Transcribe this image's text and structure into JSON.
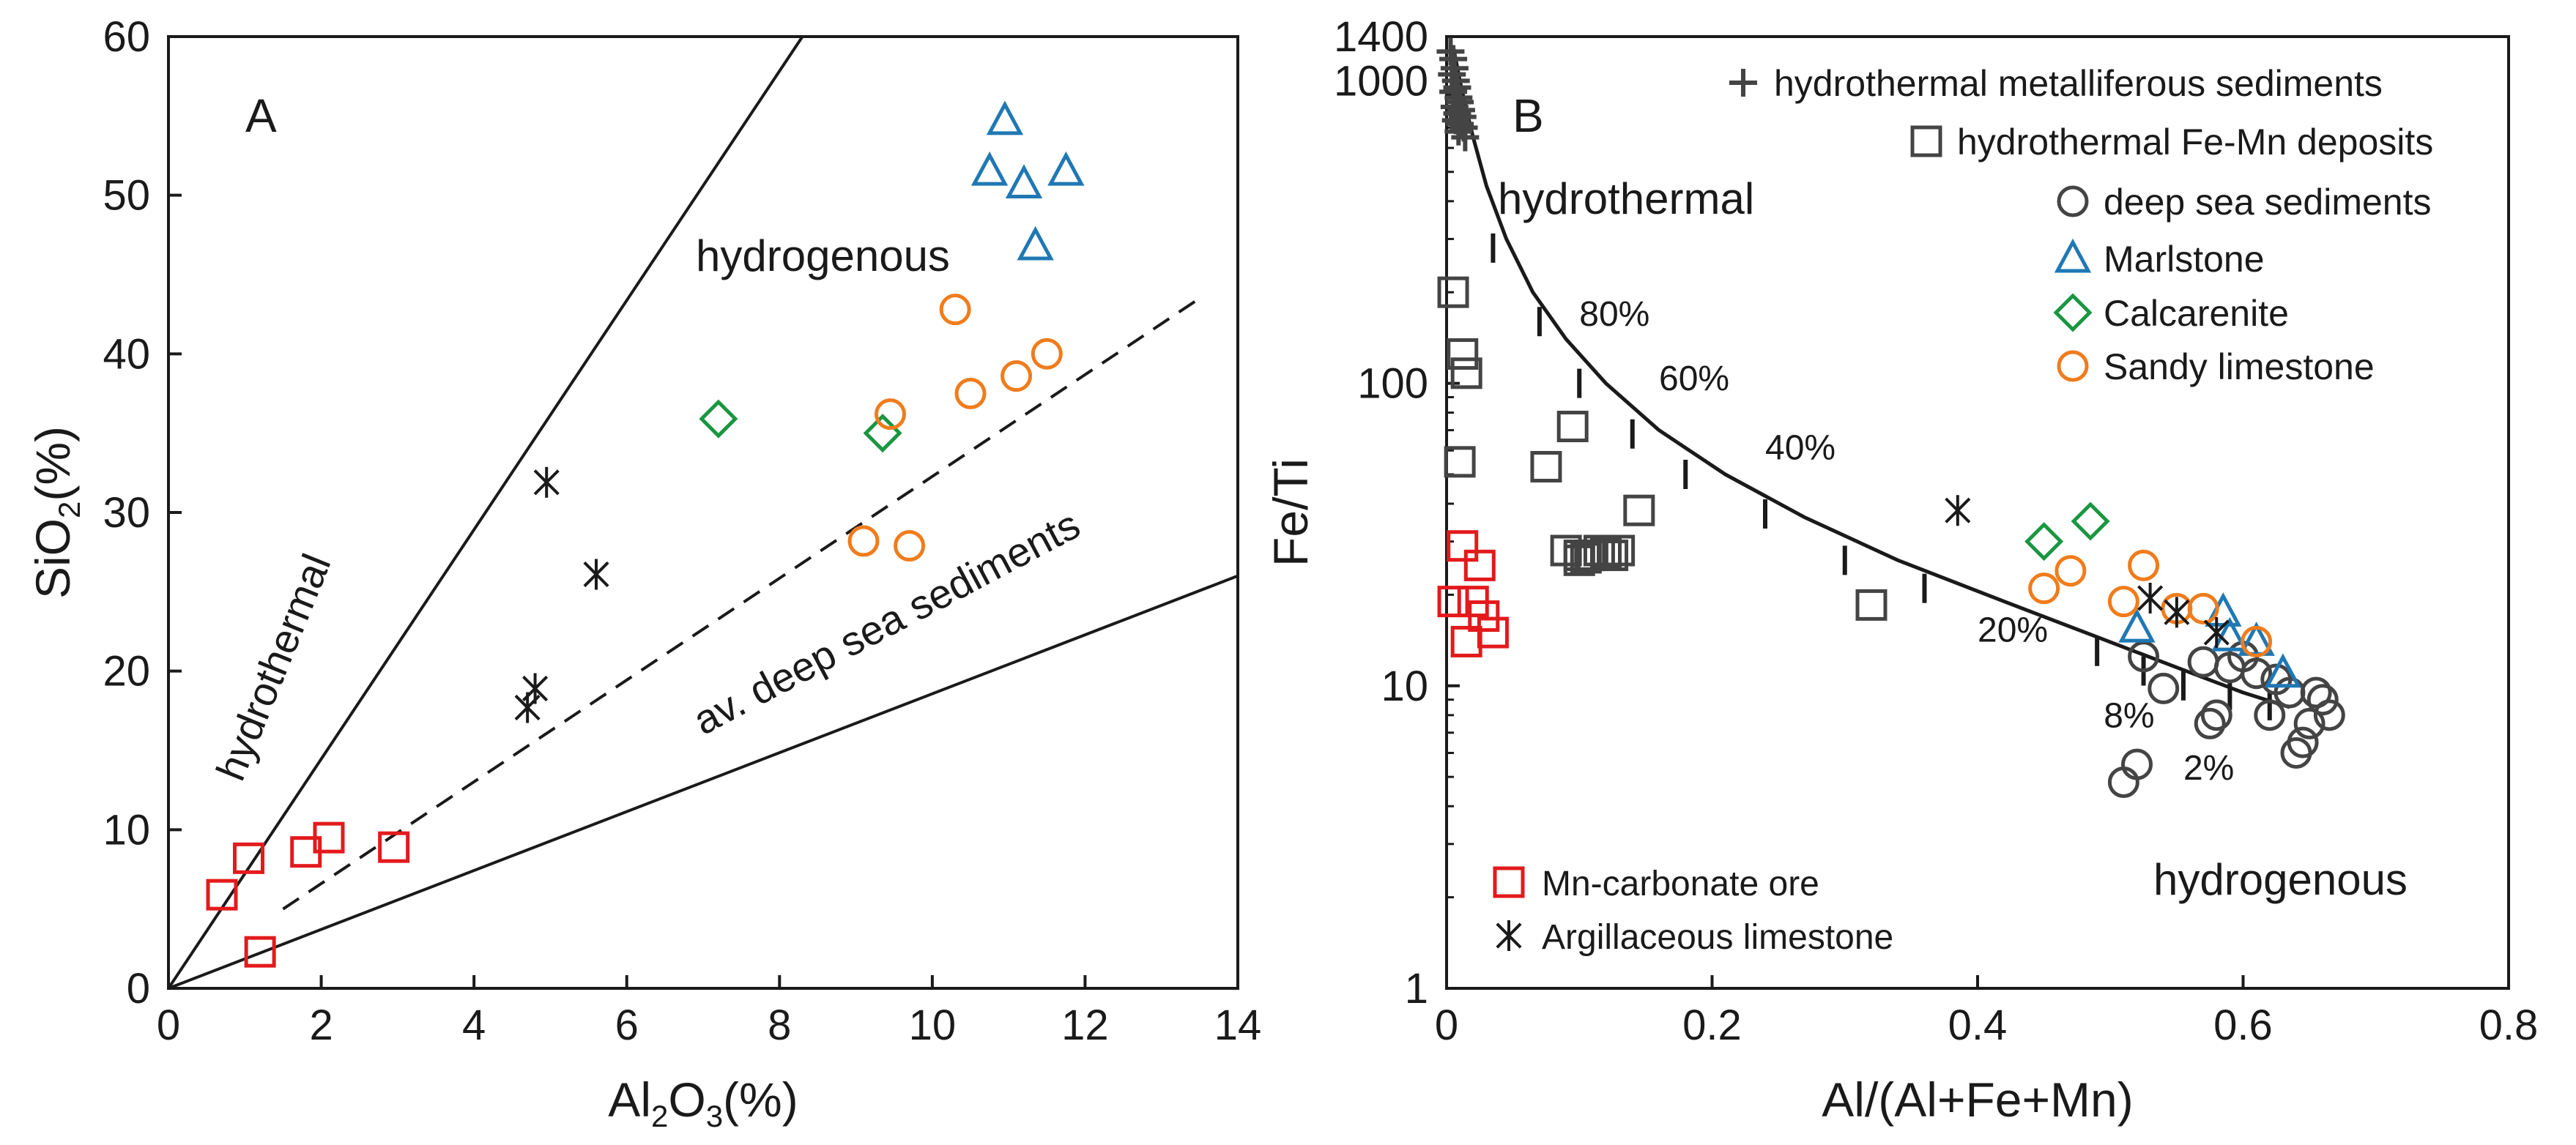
{
  "colors": {
    "red": "#e31a1c",
    "black": "#1a1a1a",
    "gray": "#444444",
    "blue": "#1f78b4",
    "green": "#1a9641",
    "orange": "#f07c1c"
  },
  "chart_data": [
    {
      "type": "scatter",
      "panel": "A",
      "xlabel": {
        "base": "Al",
        "sub1": "2",
        "mid": "O",
        "sub2": "3",
        "tail": "(%)"
      },
      "ylabel": {
        "base": "SiO",
        "sub": "2",
        "tail": "(%)"
      },
      "xlim": [
        0,
        14
      ],
      "ylim": [
        0,
        60
      ],
      "xticks": [
        0,
        2,
        4,
        6,
        8,
        10,
        12,
        14
      ],
      "yticks": [
        0,
        10,
        20,
        30,
        40,
        50,
        60
      ],
      "region_labels": [
        "hydrothermal",
        "hydrogenous",
        "av. deep sea sediments"
      ],
      "lines": [
        {
          "name": "hydrothermal-boundary",
          "x": [
            0,
            8.3
          ],
          "y": [
            0,
            60
          ],
          "style": "solid"
        },
        {
          "name": "hydrogenous-boundary",
          "x": [
            0,
            14
          ],
          "y": [
            0,
            26
          ],
          "style": "solid"
        },
        {
          "name": "deep-sea-average",
          "x": [
            1.5,
            13.5
          ],
          "y": [
            5,
            43.5
          ],
          "style": "dashed"
        }
      ],
      "series": [
        {
          "name": "Mn-carbonate ore",
          "marker": "square",
          "color": "red",
          "x": [
            0.7,
            1.05,
            1.2,
            1.8,
            2.1,
            2.95
          ],
          "y": [
            5.9,
            8.2,
            2.3,
            8.6,
            9.5,
            8.9
          ]
        },
        {
          "name": "Argillaceous limestone",
          "marker": "asterisk",
          "color": "black",
          "x": [
            4.7,
            4.8,
            4.95,
            5.6
          ],
          "y": [
            17.7,
            18.9,
            31.9,
            26.1
          ]
        },
        {
          "name": "Marlstone",
          "marker": "triangle",
          "color": "blue",
          "x": [
            10.75,
            10.95,
            11.2,
            11.35,
            11.75
          ],
          "y": [
            51.5,
            54.7,
            50.7,
            46.8,
            51.5
          ]
        },
        {
          "name": "Calcarenite",
          "marker": "diamond",
          "color": "green",
          "x": [
            7.2,
            9.35
          ],
          "y": [
            35.9,
            35.0
          ]
        },
        {
          "name": "Sandy limestone",
          "marker": "circle",
          "color": "orange",
          "x": [
            9.1,
            9.45,
            9.7,
            10.3,
            10.5,
            11.1,
            11.5
          ],
          "y": [
            28.2,
            36.2,
            27.9,
            42.8,
            37.5,
            38.6,
            40.0
          ]
        }
      ]
    },
    {
      "type": "scatter",
      "panel": "B",
      "xlabel": "Al/(Al+Fe+Mn)",
      "ylabel": "Fe/Ti",
      "xscale": "linear",
      "yscale": "log",
      "xlim": [
        0,
        0.8
      ],
      "ylim": [
        1,
        1400
      ],
      "xticks": [
        0,
        0.2,
        0.4,
        0.6,
        0.8
      ],
      "xtick_labels": [
        "0",
        "0.2",
        "0.4",
        "0.6",
        "0.8"
      ],
      "yticks": [
        1,
        10,
        100,
        1000,
        1400
      ],
      "ytick_labels": [
        "1",
        "10",
        "100",
        "1000",
        "1400"
      ],
      "region_labels": [
        "hydrothermal",
        "hydrogenous"
      ],
      "mixing_curve": {
        "x": [
          0.005,
          0.01,
          0.015,
          0.02,
          0.03,
          0.045,
          0.065,
          0.09,
          0.12,
          0.16,
          0.21,
          0.27,
          0.34,
          0.42,
          0.49,
          0.55,
          0.6,
          0.635
        ],
        "y": [
          1300,
          1000,
          800,
          650,
          450,
          300,
          200,
          140,
          100,
          70,
          50,
          36,
          26,
          19,
          14.5,
          11.5,
          9.5,
          8.5
        ]
      },
      "curve_ticks": {
        "x": [
          0.035,
          0.07,
          0.1,
          0.14,
          0.18,
          0.24,
          0.3,
          0.36,
          0.49,
          0.525,
          0.555,
          0.59,
          0.62
        ],
        "y": [
          280,
          160,
          100,
          68,
          50,
          37,
          26,
          21,
          13,
          11.2,
          10,
          9.3,
          8.6
        ]
      },
      "curve_labels": [
        {
          "text": "80%",
          "x": 0.1,
          "y": 155
        },
        {
          "text": "60%",
          "x": 0.16,
          "y": 95
        },
        {
          "text": "40%",
          "x": 0.24,
          "y": 56
        },
        {
          "text": "20%",
          "x": 0.4,
          "y": 14
        },
        {
          "text": "8%",
          "x": 0.495,
          "y": 7.3
        },
        {
          "text": "2%",
          "x": 0.555,
          "y": 4.9
        }
      ],
      "legend_top": [
        "hydrothermal metalliferous sediments",
        "hydrothermal Fe-Mn deposits",
        "deep sea sediments",
        "Marlstone",
        "Calcarenite",
        "Sandy limestone"
      ],
      "legend_bottom": [
        "Mn-carbonate ore",
        "Argillaceous limestone"
      ],
      "series": [
        {
          "name": "hydrothermal metalliferous sediments",
          "marker": "plus",
          "color": "gray",
          "x": [
            0.003,
            0.005,
            0.006,
            0.004,
            0.007,
            0.008,
            0.005,
            0.009,
            0.01,
            0.006,
            0.011,
            0.008,
            0.012,
            0.007,
            0.01,
            0.013,
            0.009,
            0.014
          ],
          "y": [
            1250,
            1180,
            1100,
            1050,
            1000,
            950,
            920,
            880,
            850,
            820,
            800,
            780,
            760,
            740,
            720,
            700,
            680,
            650
          ]
        },
        {
          "name": "hydrothermal Fe-Mn deposits",
          "marker": "square",
          "color": "gray",
          "x": [
            0.005,
            0.012,
            0.015,
            0.01,
            0.075,
            0.095,
            0.09,
            0.1,
            0.105,
            0.11,
            0.115,
            0.12,
            0.13,
            0.1,
            0.108,
            0.125,
            0.145,
            0.32
          ],
          "y": [
            200,
            125,
            108,
            55,
            53,
            72,
            28,
            27,
            26.5,
            27,
            28,
            27.5,
            28,
            26,
            27,
            27,
            38,
            18.5
          ]
        },
        {
          "name": "deep sea sediments",
          "marker": "circle",
          "color": "gray",
          "x": [
            0.51,
            0.52,
            0.525,
            0.54,
            0.57,
            0.575,
            0.58,
            0.59,
            0.6,
            0.61,
            0.62,
            0.625,
            0.635,
            0.64,
            0.645,
            0.65,
            0.655,
            0.66,
            0.665
          ],
          "y": [
            4.8,
            5.5,
            12.5,
            9.8,
            12,
            7.5,
            8,
            11.5,
            12.5,
            11,
            8,
            10.5,
            9.5,
            6,
            6.5,
            7.5,
            9.5,
            9,
            8
          ]
        },
        {
          "name": "Marlstone",
          "marker": "triangle",
          "color": "blue",
          "x": [
            0.52,
            0.585,
            0.59,
            0.61,
            0.63
          ],
          "y": [
            15.5,
            17.5,
            14.5,
            14,
            11
          ]
        },
        {
          "name": "Calcarenite",
          "marker": "diamond",
          "color": "green",
          "x": [
            0.45,
            0.485
          ],
          "y": [
            30,
            35
          ]
        },
        {
          "name": "Sandy limestone",
          "marker": "circle",
          "color": "orange",
          "x": [
            0.45,
            0.47,
            0.51,
            0.525,
            0.55,
            0.57,
            0.61
          ],
          "y": [
            21,
            24,
            19,
            25,
            18,
            18,
            14
          ]
        },
        {
          "name": "Mn-carbonate ore",
          "marker": "square",
          "color": "red",
          "x": [
            0.005,
            0.012,
            0.015,
            0.02,
            0.025,
            0.028,
            0.035
          ],
          "y": [
            19,
            29,
            14,
            19,
            25,
            17,
            15
          ]
        },
        {
          "name": "Argillaceous limestone",
          "marker": "asterisk",
          "color": "black",
          "x": [
            0.385,
            0.53,
            0.55,
            0.58
          ],
          "y": [
            38,
            19.5,
            17.5,
            15
          ]
        }
      ]
    }
  ]
}
